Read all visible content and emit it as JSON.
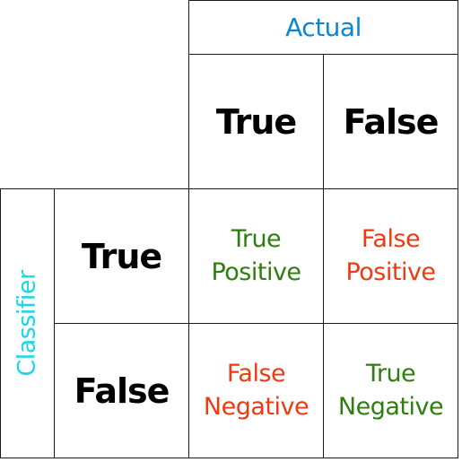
{
  "headers": {
    "actual": "Actual",
    "classifier": "Classifier"
  },
  "columns": [
    {
      "label": "True"
    },
    {
      "label": "False"
    }
  ],
  "rows": [
    {
      "label": "True"
    },
    {
      "label": "False"
    }
  ],
  "cells": [
    [
      {
        "line1": "True",
        "line2": "Positive"
      },
      {
        "line1": "False",
        "line2": "Positive"
      }
    ],
    [
      {
        "line1": "False",
        "line2": "Negative"
      },
      {
        "line1": "True",
        "line2": "Negative"
      }
    ]
  ],
  "colors": {
    "actual_header": "#0a86d0",
    "classifier_header": "#19d6e8",
    "correct": "#2e7d0f",
    "incorrect": "#ee3a12",
    "border": "#1a1a1a"
  }
}
